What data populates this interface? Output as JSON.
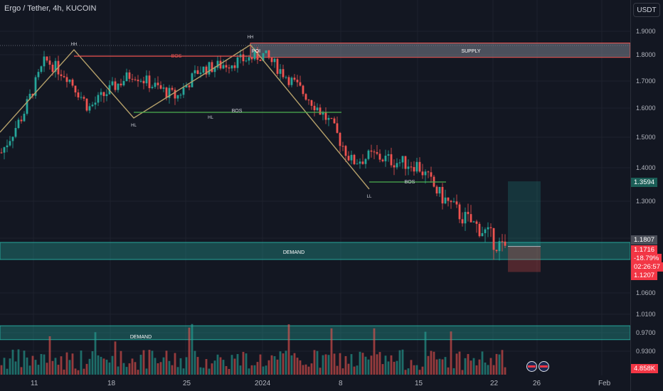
{
  "title": "Ergo / Tether, 4h, KUCOIN",
  "currency_button": "USDT",
  "price_ticks": [
    "1.9000",
    "1.8000",
    "1.7000",
    "1.6000",
    "1.5000",
    "1.4000",
    "1.3000",
    "1.0600",
    "1.0100",
    "0.9700",
    "0.9300"
  ],
  "tags": {
    "target": "1.3594",
    "entry": "1.1807",
    "price": "1.1716",
    "change": "-18.79%",
    "countdown": "02:26:57",
    "stop": "1.1207",
    "volume": "4.858K"
  },
  "x_ticks": [
    "11",
    "18",
    "25",
    "2024",
    "8",
    "15",
    "22",
    "26",
    "Feb"
  ],
  "colors": {
    "up": "#26a69a",
    "down": "#ef5350",
    "zone": "#7a7f8c",
    "demand": "#26a69a",
    "structure": "#b5a06a"
  },
  "icons": [
    "flag-icon",
    "flag-icon"
  ],
  "chart_data": {
    "type": "candlestick",
    "title": "Ergo / Tether, 4h, KUCOIN",
    "ylim": [
      0.9,
      1.95
    ],
    "x": [
      "11",
      "18",
      "25",
      "2024",
      "8",
      "15",
      "22",
      "26",
      "Feb"
    ],
    "approx_close_path": [
      [
        "11",
        1.45
      ],
      [
        "13",
        1.58
      ],
      [
        "14",
        1.78
      ],
      [
        "16",
        1.72
      ],
      [
        "18",
        1.6
      ],
      [
        "20",
        1.67
      ],
      [
        "22",
        1.73
      ],
      [
        "24",
        1.68
      ],
      [
        "26",
        1.64
      ],
      [
        "28",
        1.74
      ],
      [
        "30",
        1.76
      ],
      [
        "2024",
        1.78
      ],
      [
        "2",
        1.8
      ],
      [
        "4",
        1.72
      ],
      [
        "6",
        1.64
      ],
      [
        "8",
        1.55
      ],
      [
        "10",
        1.42
      ],
      [
        "12",
        1.44
      ],
      [
        "14",
        1.42
      ],
      [
        "16",
        1.41
      ],
      [
        "18",
        1.32
      ],
      [
        "20",
        1.26
      ],
      [
        "22",
        1.22
      ],
      [
        "23",
        1.17
      ]
    ],
    "annotations": {
      "labels": [
        "HH",
        "HH",
        "HL",
        "HL",
        "LL",
        "BOS",
        "BOS",
        "BOS",
        "POI"
      ],
      "supply_zone": {
        "label": "SUPPLY",
        "range": [
          1.79,
          1.85
        ]
      },
      "demand_zones": [
        {
          "label": "DEMAND",
          "range": [
            1.15,
            1.19
          ]
        },
        {
          "label": "DEMAND",
          "range": [
            0.955,
            0.985
          ]
        }
      ],
      "position": {
        "target": 1.3594,
        "entry": 1.1807,
        "stop": 1.1207
      }
    }
  }
}
